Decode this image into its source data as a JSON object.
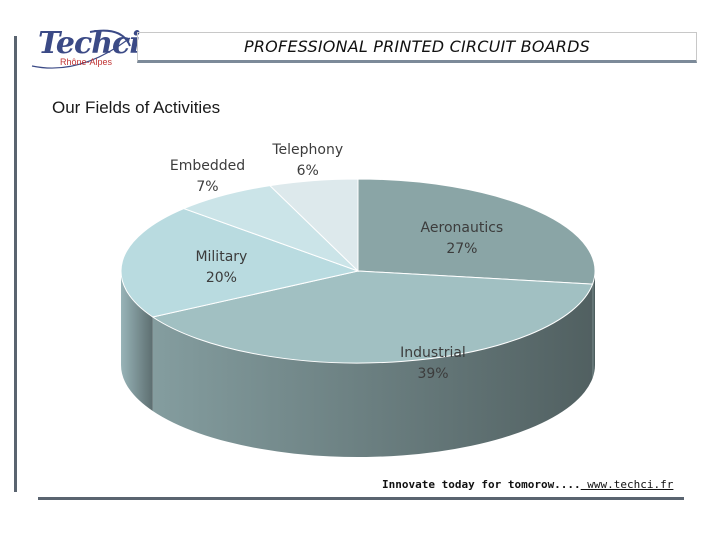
{
  "header": {
    "title": "PROFESSIONAL PRINTED CIRCUIT BOARDS",
    "logo_text": "Techci",
    "logo_sub": "Rhône-Alpes"
  },
  "section_title": "Our Fields of Activities",
  "footer": {
    "tagline": "Innovate today for tomorow....",
    "link": " www.techci.fr"
  },
  "colors": {
    "aeronautics": "#8aa5a6",
    "industrial": "#a1c0c2",
    "military": "#b9dbe0",
    "embedded": "#cbe4e8",
    "telephony": "#dde9ec",
    "accent": "#3b4a86"
  },
  "chart_data": {
    "type": "pie",
    "style": "3d",
    "title": "",
    "slices": [
      {
        "label": "Aeronautics",
        "value": 27,
        "display": "27%"
      },
      {
        "label": "Industrial",
        "value": 39,
        "display": "39%"
      },
      {
        "label": "Military",
        "value": 20,
        "display": "20%"
      },
      {
        "label": "Embedded",
        "value": 7,
        "display": "7%"
      },
      {
        "label": "Telephony",
        "value": 6,
        "display": "6%"
      }
    ],
    "legend": "none",
    "labels": "on-slice"
  }
}
